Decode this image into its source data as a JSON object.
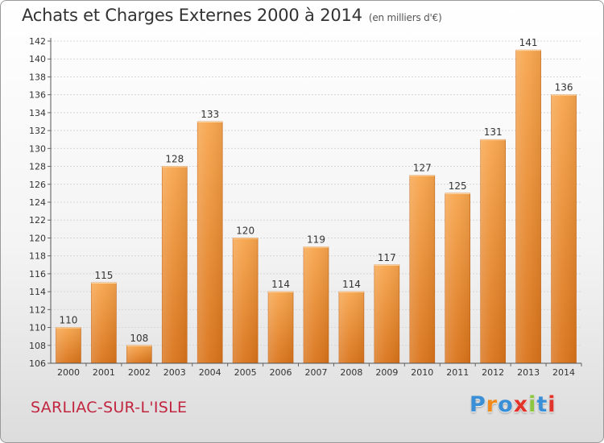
{
  "header": {
    "title": "Achats et Charges Externes 2000 à 2014",
    "unit": "(en milliers d'€)"
  },
  "footer": {
    "town": "SARLIAC-SUR-L'ISLE",
    "logo_text": "Proxiti",
    "logo_colors": [
      "#3a8fd6",
      "#f08a1d",
      "#3a8fd6",
      "#e2342b",
      "#8dc63f",
      "#3a8fd6",
      "#e2342b"
    ]
  },
  "chart_data": {
    "type": "bar",
    "categories": [
      "2000",
      "2001",
      "2002",
      "2003",
      "2004",
      "2005",
      "2006",
      "2007",
      "2008",
      "2009",
      "2010",
      "2011",
      "2012",
      "2013",
      "2014"
    ],
    "values": [
      110,
      115,
      108,
      128,
      133,
      120,
      114,
      119,
      114,
      117,
      127,
      125,
      131,
      141,
      136
    ],
    "ylim": [
      106,
      142
    ],
    "yticks": [
      106,
      108,
      110,
      112,
      114,
      116,
      118,
      120,
      122,
      124,
      126,
      128,
      130,
      132,
      134,
      136,
      138,
      140,
      142
    ],
    "grid": true,
    "bar_color_top": "#f7a54c",
    "bar_color_bottom": "#d9731a"
  }
}
